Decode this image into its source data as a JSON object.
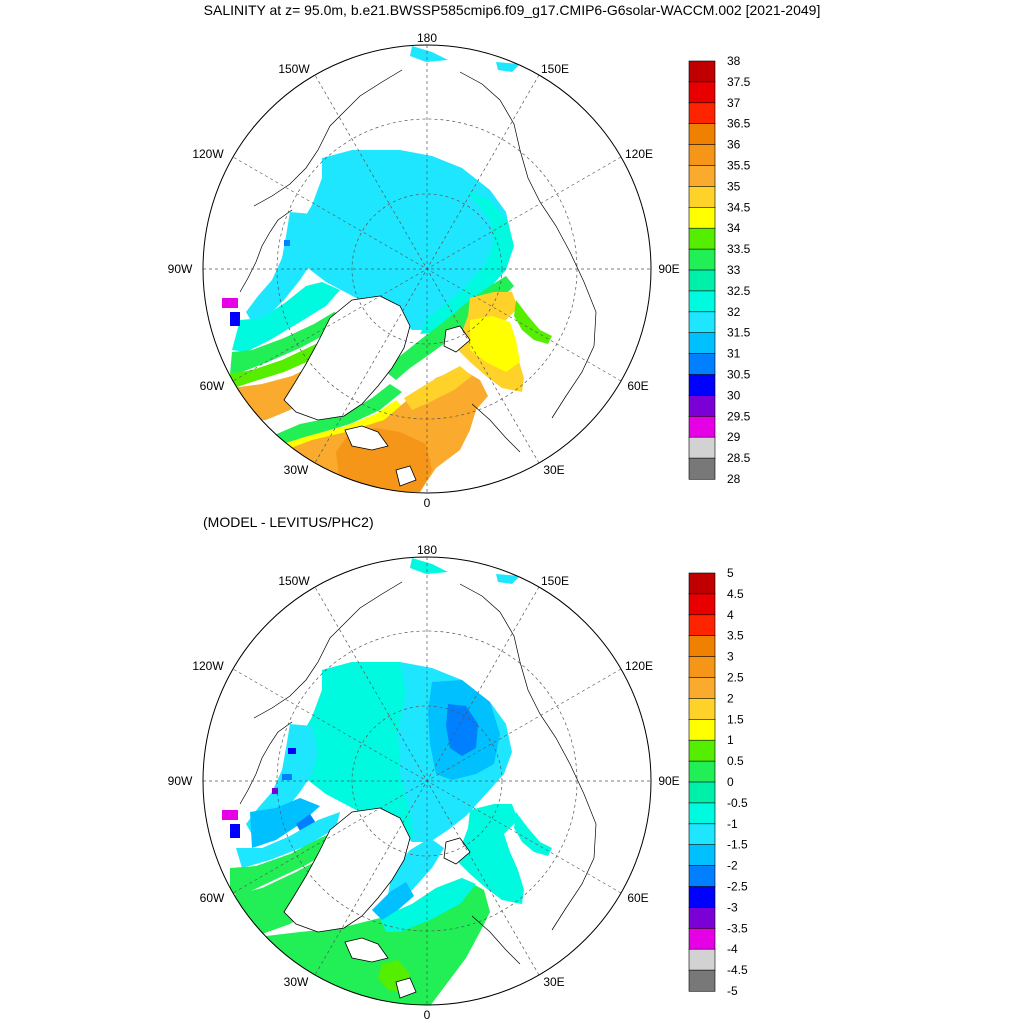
{
  "title": "SALINITY at z=  95.0m, b.e21.BWSSP585cmip6.f09_g17.CMIP6-G6solar-WACCM.002 [2021-2049]",
  "panels": [
    {
      "id": "model",
      "subtitle": "",
      "colorbar": {
        "labels": [
          "38",
          "37.5",
          "37",
          "36.5",
          "36",
          "35.5",
          "35",
          "34.5",
          "34",
          "33.5",
          "33",
          "32.5",
          "32",
          "31.5",
          "31",
          "30.5",
          "30",
          "29.5",
          "29",
          "28.5",
          "28"
        ],
        "colors": [
          "#c00000",
          "#e80000",
          "#ff2400",
          "#f08000",
          "#f59618",
          "#faaa2c",
          "#ffd22a",
          "#ffff00",
          "#55ee00",
          "#22ee55",
          "#00f0aa",
          "#00fae0",
          "#1ee6ff",
          "#00c0ff",
          "#0080ff",
          "#0000ff",
          "#7a00d6",
          "#e600e6",
          "#d2d2d2",
          "#787878"
        ]
      }
    },
    {
      "id": "difference",
      "subtitle": "(MODEL - LEVITUS/PHC2)",
      "colorbar": {
        "labels": [
          "5",
          "4.5",
          "4",
          "3.5",
          "3",
          "2.5",
          "2",
          "1.5",
          "1",
          "0.5",
          "0",
          "-0.5",
          "-1",
          "-1.5",
          "-2",
          "-2.5",
          "-3",
          "-3.5",
          "-4",
          "-4.5",
          "-5"
        ],
        "colors": [
          "#c00000",
          "#e80000",
          "#ff2400",
          "#f08000",
          "#f59618",
          "#faaa2c",
          "#ffd22a",
          "#ffff00",
          "#55ee00",
          "#22ee55",
          "#00f0aa",
          "#00fae0",
          "#1ee6ff",
          "#00c0ff",
          "#0080ff",
          "#0000ff",
          "#7a00d6",
          "#e600e6",
          "#d2d2d2",
          "#787878"
        ]
      }
    }
  ],
  "lon_labels": [
    "180",
    "150E",
    "120E",
    "90E",
    "60E",
    "30E",
    "0",
    "30W",
    "60W",
    "90W",
    "120W",
    "150W"
  ]
}
